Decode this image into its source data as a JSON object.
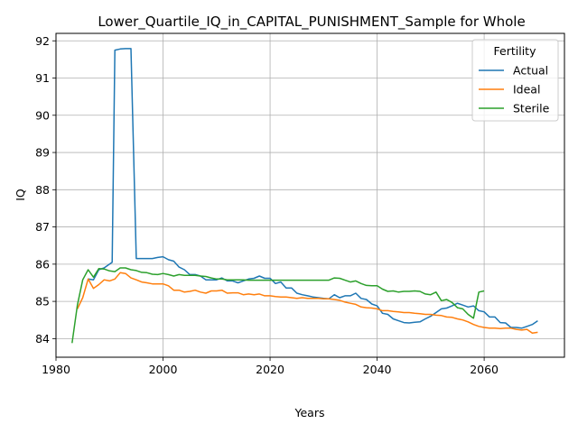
{
  "chart_data": {
    "type": "line",
    "title": "Lower_Quartile_IQ_in_CAPITAL_PUNISHMENT_Sample for Whole",
    "xlabel": "Years",
    "ylabel": "IQ",
    "xlim": [
      1980,
      2075
    ],
    "ylim": [
      83.5,
      92.2
    ],
    "x_ticks": [
      1980,
      2000,
      2020,
      2040,
      2060
    ],
    "y_ticks": [
      84,
      85,
      86,
      87,
      88,
      89,
      90,
      91,
      92
    ],
    "grid": true,
    "legend": {
      "title": "Fertility",
      "position": "top-right"
    },
    "series": [
      {
        "name": "Actual",
        "color": "#1f77b4",
        "points": [
          [
            1986,
            85.6
          ],
          [
            1987,
            85.58
          ],
          [
            1988,
            85.85
          ],
          [
            1989,
            85.9
          ],
          [
            1990,
            86.0
          ],
          [
            1990.5,
            86.05
          ],
          [
            1991,
            91.75
          ],
          [
            1992,
            91.78
          ],
          [
            1993,
            91.79
          ],
          [
            1994,
            91.79
          ],
          [
            1995,
            86.15
          ],
          [
            1996,
            86.15
          ],
          [
            1997,
            86.15
          ],
          [
            1998,
            86.15
          ],
          [
            1999,
            86.18
          ],
          [
            2000,
            86.2
          ],
          [
            2001,
            86.12
          ],
          [
            2002,
            86.08
          ],
          [
            2003,
            85.92
          ],
          [
            2004,
            85.85
          ],
          [
            2005,
            85.72
          ],
          [
            2006,
            85.72
          ],
          [
            2007,
            85.68
          ],
          [
            2008,
            85.58
          ],
          [
            2009,
            85.58
          ],
          [
            2010,
            85.58
          ],
          [
            2011,
            85.63
          ],
          [
            2012,
            85.55
          ],
          [
            2013,
            85.55
          ],
          [
            2014,
            85.5
          ],
          [
            2015,
            85.55
          ],
          [
            2016,
            85.6
          ],
          [
            2017,
            85.62
          ],
          [
            2018,
            85.68
          ],
          [
            2019,
            85.62
          ],
          [
            2020,
            85.62
          ],
          [
            2021,
            85.48
          ],
          [
            2022,
            85.52
          ],
          [
            2023,
            85.36
          ],
          [
            2024,
            85.36
          ],
          [
            2025,
            85.22
          ],
          [
            2026,
            85.18
          ],
          [
            2027,
            85.15
          ],
          [
            2028,
            85.12
          ],
          [
            2029,
            85.1
          ],
          [
            2030,
            85.08
          ],
          [
            2031,
            85.07
          ],
          [
            2032,
            85.18
          ],
          [
            2033,
            85.1
          ],
          [
            2034,
            85.15
          ],
          [
            2035,
            85.15
          ],
          [
            2036,
            85.22
          ],
          [
            2037,
            85.08
          ],
          [
            2038,
            85.05
          ],
          [
            2039,
            84.93
          ],
          [
            2040,
            84.88
          ],
          [
            2041,
            84.68
          ],
          [
            2042,
            84.65
          ],
          [
            2043,
            84.53
          ],
          [
            2044,
            84.48
          ],
          [
            2045,
            84.43
          ],
          [
            2046,
            84.42
          ],
          [
            2047,
            84.44
          ],
          [
            2048,
            84.45
          ],
          [
            2049,
            84.53
          ],
          [
            2050,
            84.6
          ],
          [
            2051,
            84.7
          ],
          [
            2052,
            84.8
          ],
          [
            2053,
            84.82
          ],
          [
            2054,
            84.88
          ],
          [
            2055,
            84.95
          ],
          [
            2056,
            84.9
          ],
          [
            2057,
            84.85
          ],
          [
            2058,
            84.88
          ],
          [
            2059,
            84.75
          ],
          [
            2060,
            84.72
          ],
          [
            2061,
            84.58
          ],
          [
            2062,
            84.58
          ],
          [
            2063,
            84.43
          ],
          [
            2064,
            84.42
          ],
          [
            2065,
            84.3
          ],
          [
            2066,
            84.3
          ],
          [
            2067,
            84.28
          ],
          [
            2068,
            84.33
          ],
          [
            2069,
            84.38
          ],
          [
            2070,
            84.48
          ]
        ]
      },
      {
        "name": "Ideal",
        "color": "#ff7f0e",
        "points": [
          [
            1984,
            84.8
          ],
          [
            1985,
            85.1
          ],
          [
            1986,
            85.6
          ],
          [
            1987,
            85.35
          ],
          [
            1988,
            85.45
          ],
          [
            1989,
            85.58
          ],
          [
            1990,
            85.55
          ],
          [
            1991,
            85.6
          ],
          [
            1992,
            85.77
          ],
          [
            1993,
            85.75
          ],
          [
            1994,
            85.63
          ],
          [
            1995,
            85.58
          ],
          [
            1996,
            85.52
          ],
          [
            1997,
            85.5
          ],
          [
            1998,
            85.47
          ],
          [
            1999,
            85.47
          ],
          [
            2000,
            85.47
          ],
          [
            2001,
            85.42
          ],
          [
            2002,
            85.3
          ],
          [
            2003,
            85.3
          ],
          [
            2004,
            85.25
          ],
          [
            2005,
            85.27
          ],
          [
            2006,
            85.3
          ],
          [
            2007,
            85.25
          ],
          [
            2008,
            85.22
          ],
          [
            2009,
            85.28
          ],
          [
            2010,
            85.28
          ],
          [
            2011,
            85.3
          ],
          [
            2012,
            85.22
          ],
          [
            2013,
            85.23
          ],
          [
            2014,
            85.23
          ],
          [
            2015,
            85.18
          ],
          [
            2016,
            85.2
          ],
          [
            2017,
            85.18
          ],
          [
            2018,
            85.2
          ],
          [
            2019,
            85.15
          ],
          [
            2020,
            85.15
          ],
          [
            2021,
            85.13
          ],
          [
            2022,
            85.12
          ],
          [
            2023,
            85.12
          ],
          [
            2024,
            85.1
          ],
          [
            2025,
            85.08
          ],
          [
            2026,
            85.1
          ],
          [
            2027,
            85.08
          ],
          [
            2028,
            85.08
          ],
          [
            2029,
            85.08
          ],
          [
            2030,
            85.07
          ],
          [
            2031,
            85.07
          ],
          [
            2032,
            85.05
          ],
          [
            2033,
            85.03
          ],
          [
            2034,
            84.98
          ],
          [
            2035,
            84.95
          ],
          [
            2036,
            84.92
          ],
          [
            2037,
            84.85
          ],
          [
            2038,
            84.83
          ],
          [
            2039,
            84.82
          ],
          [
            2040,
            84.8
          ],
          [
            2041,
            84.75
          ],
          [
            2042,
            84.75
          ],
          [
            2043,
            84.73
          ],
          [
            2044,
            84.72
          ],
          [
            2045,
            84.7
          ],
          [
            2046,
            84.7
          ],
          [
            2047,
            84.68
          ],
          [
            2048,
            84.67
          ],
          [
            2049,
            84.65
          ],
          [
            2050,
            84.65
          ],
          [
            2051,
            84.63
          ],
          [
            2052,
            84.62
          ],
          [
            2053,
            84.58
          ],
          [
            2054,
            84.57
          ],
          [
            2055,
            84.53
          ],
          [
            2056,
            84.5
          ],
          [
            2057,
            84.45
          ],
          [
            2058,
            84.38
          ],
          [
            2059,
            84.33
          ],
          [
            2060,
            84.3
          ],
          [
            2061,
            84.28
          ],
          [
            2062,
            84.28
          ],
          [
            2063,
            84.27
          ],
          [
            2064,
            84.28
          ],
          [
            2065,
            84.28
          ],
          [
            2066,
            84.25
          ],
          [
            2067,
            84.23
          ],
          [
            2068,
            84.25
          ],
          [
            2069,
            84.15
          ],
          [
            2070,
            84.17
          ]
        ]
      },
      {
        "name": "Sterile",
        "color": "#2ca02c",
        "points": [
          [
            1983,
            83.88
          ],
          [
            1984,
            84.9
          ],
          [
            1985,
            85.58
          ],
          [
            1986,
            85.85
          ],
          [
            1987,
            85.65
          ],
          [
            1988,
            85.88
          ],
          [
            1989,
            85.87
          ],
          [
            1990,
            85.82
          ],
          [
            1991,
            85.8
          ],
          [
            1992,
            85.9
          ],
          [
            1993,
            85.9
          ],
          [
            1994,
            85.85
          ],
          [
            1995,
            85.83
          ],
          [
            1996,
            85.78
          ],
          [
            1997,
            85.77
          ],
          [
            1998,
            85.73
          ],
          [
            1999,
            85.72
          ],
          [
            2000,
            85.75
          ],
          [
            2001,
            85.72
          ],
          [
            2002,
            85.68
          ],
          [
            2003,
            85.72
          ],
          [
            2004,
            85.7
          ],
          [
            2005,
            85.7
          ],
          [
            2006,
            85.7
          ],
          [
            2007,
            85.68
          ],
          [
            2008,
            85.67
          ],
          [
            2009,
            85.63
          ],
          [
            2010,
            85.6
          ],
          [
            2011,
            85.6
          ],
          [
            2012,
            85.58
          ],
          [
            2013,
            85.58
          ],
          [
            2014,
            85.58
          ],
          [
            2015,
            85.58
          ],
          [
            2016,
            85.57
          ],
          [
            2017,
            85.57
          ],
          [
            2018,
            85.57
          ],
          [
            2019,
            85.57
          ],
          [
            2020,
            85.57
          ],
          [
            2021,
            85.57
          ],
          [
            2022,
            85.57
          ],
          [
            2023,
            85.57
          ],
          [
            2024,
            85.57
          ],
          [
            2025,
            85.57
          ],
          [
            2026,
            85.57
          ],
          [
            2027,
            85.57
          ],
          [
            2028,
            85.57
          ],
          [
            2029,
            85.57
          ],
          [
            2030,
            85.57
          ],
          [
            2031,
            85.57
          ],
          [
            2032,
            85.63
          ],
          [
            2033,
            85.62
          ],
          [
            2034,
            85.57
          ],
          [
            2035,
            85.52
          ],
          [
            2036,
            85.55
          ],
          [
            2037,
            85.48
          ],
          [
            2038,
            85.43
          ],
          [
            2039,
            85.42
          ],
          [
            2040,
            85.42
          ],
          [
            2041,
            85.33
          ],
          [
            2042,
            85.27
          ],
          [
            2043,
            85.28
          ],
          [
            2044,
            85.25
          ],
          [
            2045,
            85.27
          ],
          [
            2046,
            85.27
          ],
          [
            2047,
            85.28
          ],
          [
            2048,
            85.27
          ],
          [
            2049,
            85.2
          ],
          [
            2050,
            85.18
          ],
          [
            2051,
            85.25
          ],
          [
            2052,
            85.02
          ],
          [
            2053,
            85.05
          ],
          [
            2054,
            84.97
          ],
          [
            2055,
            84.83
          ],
          [
            2056,
            84.8
          ],
          [
            2057,
            84.65
          ],
          [
            2058,
            84.55
          ],
          [
            2059,
            85.25
          ],
          [
            2060,
            85.28
          ]
        ]
      }
    ]
  }
}
